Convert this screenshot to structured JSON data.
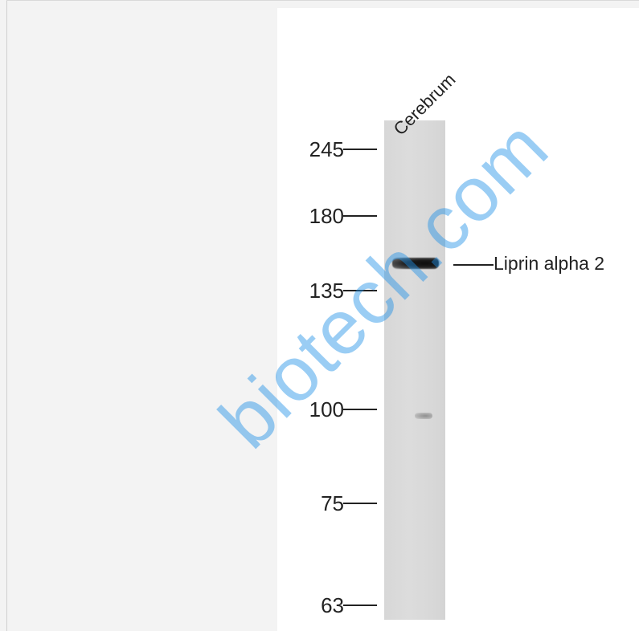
{
  "blot": {
    "lane_label": "Cerebrum",
    "band_label": "Liprin alpha 2",
    "markers": [
      "245",
      "180",
      "135",
      "100",
      "75",
      "63"
    ],
    "watermark": "biotech.com"
  },
  "colors": {
    "watermark": "#1e90e6",
    "lane": "#d9d9d9",
    "band": "#111111"
  }
}
